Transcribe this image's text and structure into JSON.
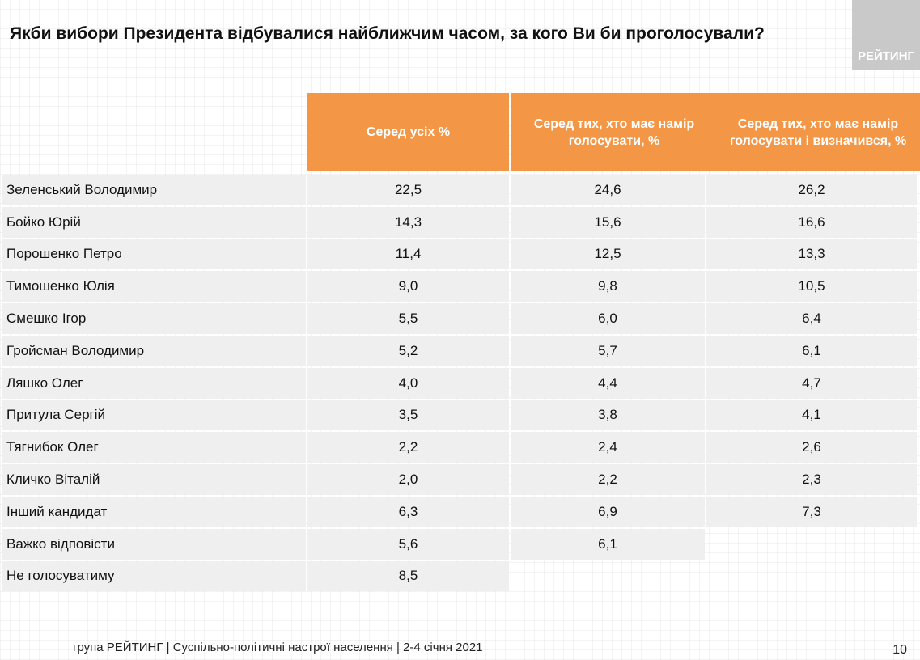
{
  "title": "Якби вибори Президента відбувалися найближчим часом, за кого Ви би проголосували?",
  "logo": "РЕЙТИНГ",
  "columns": [
    "Серед усіх %",
    "Серед тих, хто має намір голосувати, %",
    "Серед тих, хто має намір голосувати і визначився, %"
  ],
  "rows": [
    {
      "name": "Зеленський Володимир",
      "v": [
        "22,5",
        "24,6",
        "26,2"
      ]
    },
    {
      "name": "Бойко Юрій",
      "v": [
        "14,3",
        "15,6",
        "16,6"
      ]
    },
    {
      "name": "Порошенко Петро",
      "v": [
        "11,4",
        "12,5",
        "13,3"
      ]
    },
    {
      "name": "Тимошенко Юлія",
      "v": [
        "9,0",
        "9,8",
        "10,5"
      ]
    },
    {
      "name": "Смешко Ігор",
      "v": [
        "5,5",
        "6,0",
        "6,4"
      ]
    },
    {
      "name": "Гройсман Володимир",
      "v": [
        "5,2",
        "5,7",
        "6,1"
      ]
    },
    {
      "name": "Ляшко Олег",
      "v": [
        "4,0",
        "4,4",
        "4,7"
      ]
    },
    {
      "name": "Притула Сергій",
      "v": [
        "3,5",
        "3,8",
        "4,1"
      ]
    },
    {
      "name": "Тягнибок Олег",
      "v": [
        "2,2",
        "2,4",
        "2,6"
      ]
    },
    {
      "name": "Кличко Віталій",
      "v": [
        "2,0",
        "2,2",
        "2,3"
      ]
    },
    {
      "name": "Інший кандидат",
      "v": [
        "6,3",
        "6,9",
        "7,3"
      ]
    },
    {
      "name": "Важко відповісти",
      "v": [
        "5,6",
        "6,1"
      ]
    },
    {
      "name": "Не голосуватиму",
      "v": [
        "8,5"
      ]
    }
  ],
  "footer": "група РЕЙТИНГ | Суспільно-політичні настрої населення  | 2-4 січня 2021",
  "page_number": "10",
  "colors": {
    "header": "#f39646",
    "row": "#efefef"
  }
}
